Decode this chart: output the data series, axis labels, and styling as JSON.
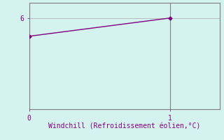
{
  "x": [
    0,
    1
  ],
  "y": [
    4.8,
    6.0
  ],
  "line_color": "#800080",
  "marker": "D",
  "markersize": 2.5,
  "linewidth": 1,
  "background_color": "#d4f2ee",
  "axes_bg_color": "#d4f2ee",
  "xlabel": "Windchill (Refroidissement éolien,°C)",
  "xlabel_color": "#800080",
  "tick_color": "#800080",
  "axis_color": "#808080",
  "xlim": [
    0,
    1.35
  ],
  "ylim": [
    0,
    7.0
  ],
  "yticks": [
    6
  ],
  "xticks": [
    0,
    1
  ],
  "grid_color": "#aaaaaa",
  "xlabel_fontsize": 7,
  "tick_fontsize": 7,
  "vline_x": 1,
  "vline_color": "#808080"
}
